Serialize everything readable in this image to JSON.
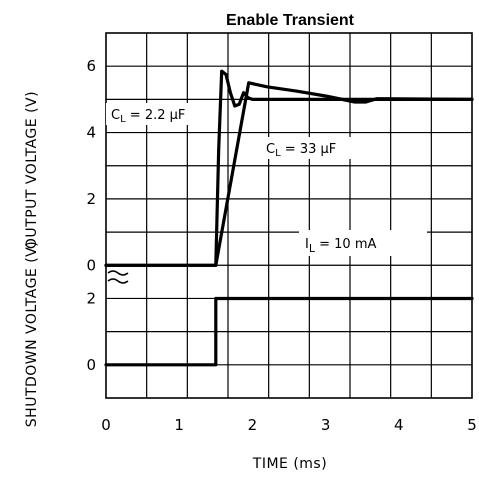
{
  "chart_data": {
    "type": "line",
    "title": "Enable Transient",
    "xlabel": "TIME (ms)",
    "xlim": [
      0,
      5
    ],
    "x_ticks": [
      "0",
      "1",
      "2",
      "3",
      "4",
      "5"
    ],
    "panels": [
      {
        "ylabel": "OUTPUT VOLTAGE (V)",
        "ylim": [
          0,
          7
        ],
        "y_ticks": [
          "0",
          "2",
          "4",
          "6"
        ],
        "series": [
          {
            "name": "CL = 2.2 µF",
            "points": [
              [
                0,
                0
              ],
              [
                1.5,
                0
              ],
              [
                1.54,
                3.5
              ],
              [
                1.58,
                5.85
              ],
              [
                1.64,
                5.75
              ],
              [
                1.7,
                5.2
              ],
              [
                1.76,
                4.8
              ],
              [
                1.82,
                4.85
              ],
              [
                1.88,
                5.2
              ],
              [
                1.94,
                5.05
              ],
              [
                2.0,
                5.0
              ],
              [
                5,
                5.0
              ]
            ]
          },
          {
            "name": "CL = 33 µF",
            "points": [
              [
                0,
                0
              ],
              [
                1.5,
                0
              ],
              [
                1.95,
                5.5
              ],
              [
                2.2,
                5.38
              ],
              [
                2.6,
                5.25
              ],
              [
                3.0,
                5.1
              ],
              [
                3.4,
                4.92
              ],
              [
                3.55,
                4.92
              ],
              [
                3.7,
                5.02
              ],
              [
                5,
                5.0
              ]
            ]
          }
        ],
        "annotations": {
          "cl_small": {
            "main": "C",
            "sub": "L",
            "rest": " = 2.2 µF"
          },
          "cl_large": {
            "main": "C",
            "sub": "L",
            "rest": " = 33 µF"
          },
          "load": {
            "main": "I",
            "sub": "L",
            "rest": "  =  10 mA"
          }
        }
      },
      {
        "ylabel": "SHUTDOWN VOLTAGE (V)",
        "ylim": [
          -1,
          3
        ],
        "y_ticks": [
          "0",
          "2"
        ],
        "series": [
          {
            "points": [
              [
                0,
                0
              ],
              [
                1.5,
                0
              ],
              [
                1.5,
                2
              ],
              [
                5,
                2
              ]
            ]
          }
        ]
      }
    ],
    "grid": true
  }
}
